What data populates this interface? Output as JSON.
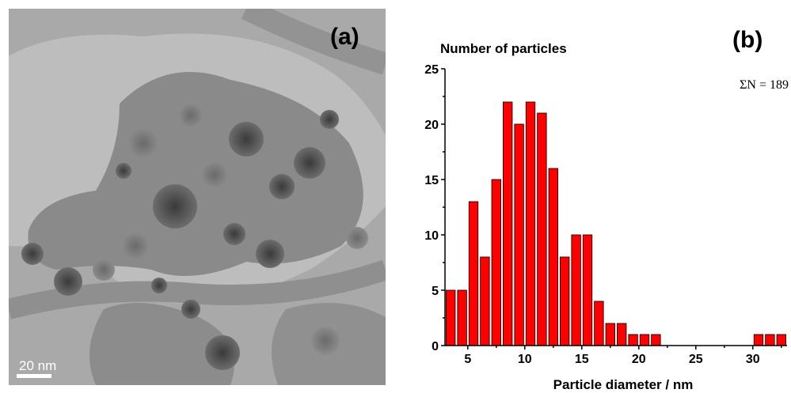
{
  "panel_a": {
    "label": "(a)",
    "scale_bar_label": "20 nm"
  },
  "panel_b": {
    "label": "(b)"
  },
  "chart_data": {
    "type": "bar",
    "title": "",
    "xlabel": "Particle diameter / nm",
    "ylabel": "Number of particles",
    "annotation": "ΣN = 189",
    "xlim": [
      3,
      33
    ],
    "ylim": [
      0,
      25
    ],
    "x_ticks": [
      5,
      10,
      15,
      20,
      25,
      30
    ],
    "y_ticks": [
      0,
      5,
      10,
      15,
      20,
      25
    ],
    "bar_width": 0.8,
    "bar_color": "#ff0000",
    "x": [
      3.5,
      4.5,
      5.5,
      6.5,
      7.5,
      8.5,
      9.5,
      10.5,
      11.5,
      12.5,
      13.5,
      14.5,
      15.5,
      16.5,
      17.5,
      18.5,
      19.5,
      20.5,
      21.5,
      30.5,
      31.5,
      32.5
    ],
    "values": [
      5,
      5,
      13,
      8,
      15,
      22,
      20,
      22,
      21,
      16,
      8,
      10,
      10,
      4,
      2,
      2,
      1,
      1,
      1,
      1,
      1,
      1
    ]
  }
}
